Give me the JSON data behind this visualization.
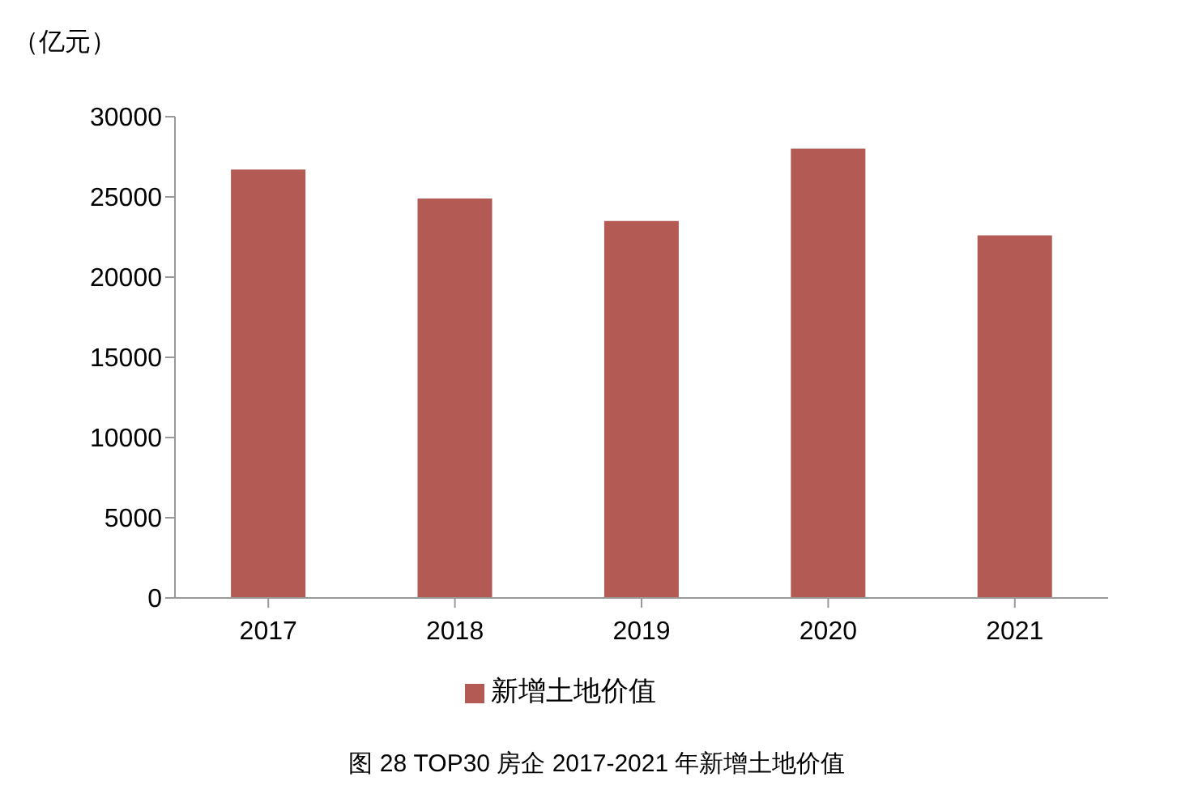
{
  "chart_data": {
    "type": "bar",
    "title": "图 28 TOP30 房企 2017-2021 年新增土地价值",
    "ylabel": "（亿元）",
    "categories": [
      "2017",
      "2018",
      "2019",
      "2020",
      "2021"
    ],
    "series": [
      {
        "name": "新增土地价值",
        "color": "#b35a54",
        "values": [
          26700,
          24900,
          23500,
          28000,
          22600
        ]
      }
    ],
    "ylim": [
      0,
      30000
    ],
    "yticks": [
      0,
      5000,
      10000,
      15000,
      20000,
      25000,
      30000
    ],
    "grid": false,
    "legend": "bottom"
  }
}
